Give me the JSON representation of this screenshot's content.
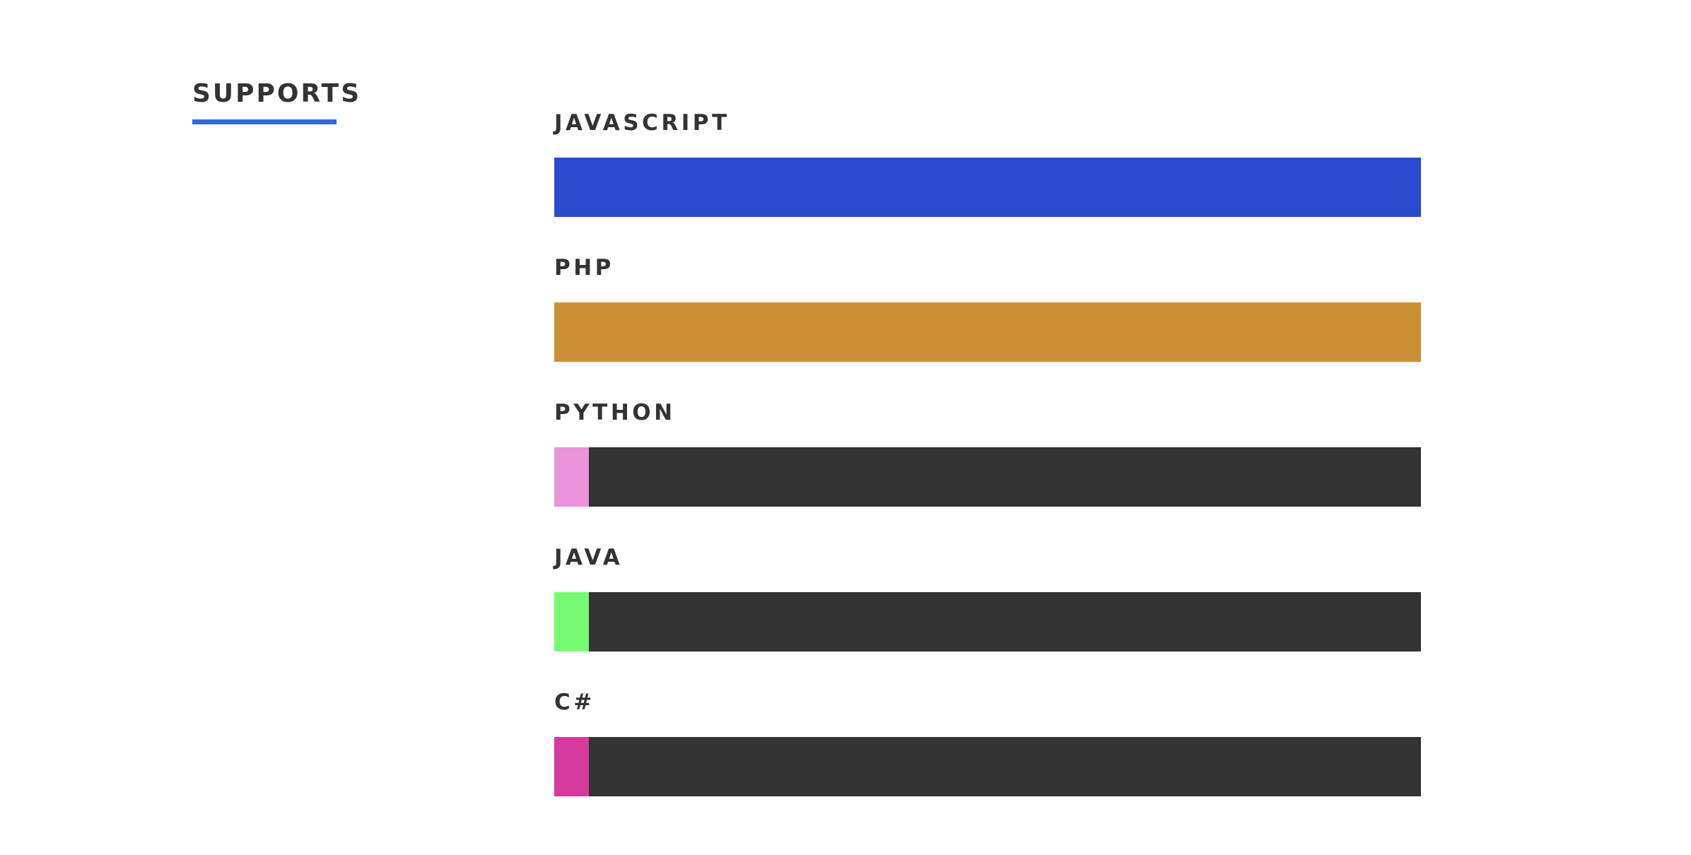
{
  "section": {
    "title": "SUPPORTS",
    "underline_color": "#2a6dd9"
  },
  "skills": [
    {
      "label": "JAVASCRIPT",
      "level_percent": 100,
      "color": "#2b4bcf"
    },
    {
      "label": "PHP",
      "level_percent": 100,
      "color": "#cd8f34"
    },
    {
      "label": "PYTHON",
      "level_percent": 4,
      "color": "#ea94d9"
    },
    {
      "label": "JAVA",
      "level_percent": 4,
      "color": "#77fb73"
    },
    {
      "label": "C#",
      "level_percent": 4,
      "color": "#d53a9c"
    }
  ],
  "track_color": "#333333"
}
